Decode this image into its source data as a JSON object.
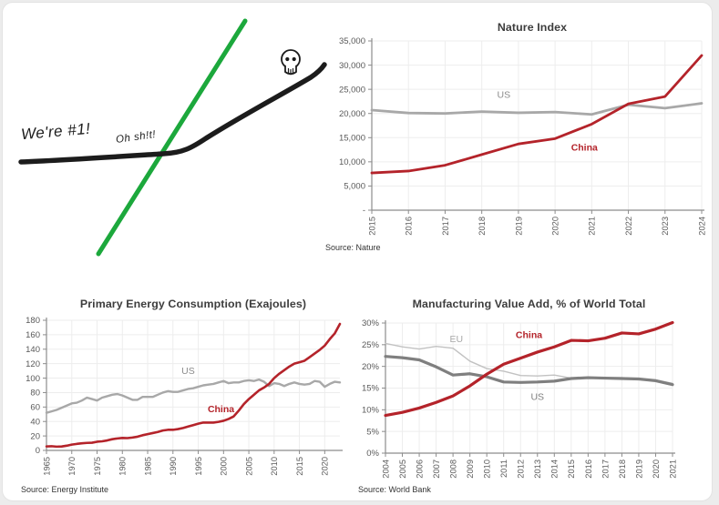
{
  "frame": {
    "background": "#ececec",
    "card_background": "#ffffff"
  },
  "colors": {
    "red": "#b4232a",
    "gray": "#a8a8a8",
    "dark_gray": "#7f7f7f",
    "light_gray": "#c2c2c2",
    "green": "#1ca83c",
    "black": "#1c1c1c",
    "grid": "#ededed",
    "axis": "#8c8c8c",
    "tick": "#595959",
    "title": "#3d3d3d",
    "source": "#333333"
  },
  "sketch": {
    "annotations": [
      {
        "text": "We're #1!"
      },
      {
        "text": "Oh sh!t!"
      }
    ],
    "icon": "skull-doodle",
    "lines": [
      {
        "name": "us-black-line",
        "color_key": "black"
      },
      {
        "name": "china-green-line",
        "color_key": "green"
      }
    ]
  },
  "chart_data": [
    {
      "id": "nature",
      "type": "line",
      "title": "Nature Index",
      "source": "Source: Nature",
      "x": {
        "start": 2015,
        "end": 2024,
        "tick_step": 1
      },
      "y": {
        "min": 0,
        "max": 35000,
        "tick_step": 5000,
        "tick_labels": [
          "-",
          "5,000",
          "10,000",
          "15,000",
          "20,000",
          "25,000",
          "30,000",
          "35,000"
        ]
      },
      "series": [
        {
          "name": "US",
          "color_key": "gray",
          "width": 2.8,
          "values": [
            20700,
            20100,
            20000,
            20400,
            20150,
            20300,
            19800,
            21800,
            21100,
            22100
          ]
        },
        {
          "name": "China",
          "color_key": "red",
          "width": 2.8,
          "values": [
            7700,
            8100,
            9300,
            11500,
            13700,
            14800,
            17800,
            22000,
            23500,
            32000
          ]
        }
      ],
      "annotations": [
        {
          "text": "US",
          "x": 2018.6,
          "y": 23200,
          "color_key": "axis",
          "bold": false
        },
        {
          "text": "China",
          "x": 2020.8,
          "y": 12300,
          "color_key": "red",
          "bold": true
        }
      ]
    },
    {
      "id": "energy",
      "type": "line",
      "title": "Primary Energy Consumption (Exajoules)",
      "source": "Source: Energy Institute",
      "x": {
        "start": 1965,
        "end": 2023,
        "tick_step": 5
      },
      "y": {
        "min": 0,
        "max": 180,
        "tick_step": 20,
        "tick_labels": [
          "0",
          "20",
          "40",
          "60",
          "80",
          "100",
          "120",
          "140",
          "160",
          "180"
        ]
      },
      "series": [
        {
          "name": "US",
          "color_key": "gray",
          "width": 2.4,
          "values": [
            52,
            54,
            56,
            59,
            62,
            65,
            66,
            69,
            73,
            71,
            69,
            73,
            75,
            77,
            78,
            76,
            73,
            70,
            70,
            74,
            74,
            74,
            77,
            80,
            82,
            81,
            81,
            83,
            85,
            86,
            88,
            90,
            91,
            92,
            94,
            96,
            93,
            94,
            94,
            96,
            97,
            96,
            98,
            95,
            89,
            93,
            92,
            89,
            92,
            94,
            92,
            91,
            92,
            96,
            95,
            88,
            92,
            95,
            94
          ]
        },
        {
          "name": "China",
          "color_key": "red",
          "width": 2.6,
          "values": [
            5.5,
            5.8,
            5.2,
            5.4,
            6.5,
            8,
            9,
            9.8,
            10.4,
            10.6,
            12,
            12.6,
            13.8,
            15.5,
            16.5,
            17.2,
            17,
            17.8,
            19,
            21,
            22.5,
            24,
            25.5,
            27.5,
            28.5,
            28.5,
            29.5,
            31,
            33,
            35,
            37,
            38.5,
            38.5,
            38.5,
            39.5,
            41,
            43.5,
            47,
            55,
            64,
            71,
            77,
            83,
            87,
            92,
            100,
            106,
            111,
            116,
            120,
            122,
            124,
            129,
            134,
            139,
            145,
            154,
            162,
            175
          ]
        }
      ],
      "annotations": [
        {
          "text": "US",
          "x": 1993,
          "y": 106,
          "color_key": "axis",
          "bold": false
        },
        {
          "text": "China",
          "x": 1999.5,
          "y": 53,
          "color_key": "red",
          "bold": true
        }
      ]
    },
    {
      "id": "mfg",
      "type": "line",
      "title": "Manufacturing Value Add, % of World Total",
      "source": "Source: World Bank",
      "x": {
        "start": 2004,
        "end": 2021,
        "tick_step": 1
      },
      "y": {
        "min": 0,
        "max": 30,
        "tick_step": 5,
        "tick_labels": [
          "0%",
          "5%",
          "10%",
          "15%",
          "20%",
          "25%",
          "30%"
        ]
      },
      "series": [
        {
          "name": "EU",
          "color_key": "light_gray",
          "width": 1.4,
          "values": [
            25.3,
            24.5,
            24.0,
            24.6,
            24.2,
            21.2,
            19.5,
            18.9,
            17.9,
            17.8,
            18.0,
            17.3,
            17.5,
            17.4,
            17.4,
            17.1,
            16.9,
            16.1
          ]
        },
        {
          "name": "US",
          "color_key": "dark_gray",
          "width": 3.2,
          "values": [
            22.3,
            22.0,
            21.5,
            19.9,
            18.0,
            18.3,
            17.6,
            16.4,
            16.3,
            16.4,
            16.6,
            17.2,
            17.4,
            17.3,
            17.2,
            17.1,
            16.7,
            15.8
          ]
        },
        {
          "name": "China",
          "color_key": "red",
          "width": 3.2,
          "values": [
            8.7,
            9.4,
            10.4,
            11.7,
            13.2,
            15.5,
            18.2,
            20.5,
            21.9,
            23.3,
            24.5,
            26.0,
            25.9,
            26.5,
            27.7,
            27.5,
            28.6,
            30.1
          ]
        }
      ],
      "annotations": [
        {
          "text": "EU",
          "x": 2008.2,
          "y": 25.6,
          "color_key": "gray",
          "bold": false
        },
        {
          "text": "China",
          "x": 2012.5,
          "y": 26.5,
          "color_key": "red",
          "bold": true
        },
        {
          "text": "US",
          "x": 2013,
          "y": 12.3,
          "color_key": "dark_gray",
          "bold": false
        }
      ]
    }
  ]
}
